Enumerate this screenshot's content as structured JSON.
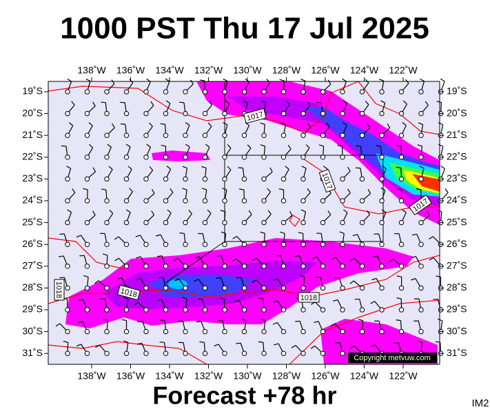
{
  "header": {
    "title": "1000 PST Thu 17 Jul 2025"
  },
  "footer": {
    "forecast": "Forecast +78 hr",
    "image_id": "IM2"
  },
  "map": {
    "longitude_labels": [
      "138˚W",
      "136˚W",
      "134˚W",
      "132˚W",
      "130˚W",
      "128˚W",
      "126˚W",
      "124˚W",
      "122˚W"
    ],
    "latitude_labels": [
      "19˚S",
      "20˚S",
      "21˚S",
      "22˚S",
      "23˚S",
      "24˚S",
      "25˚S",
      "26˚S",
      "27˚S",
      "28˚S",
      "29˚S",
      "30˚S",
      "31˚S"
    ],
    "isobar_labels": [
      "1017",
      "1017",
      "1017",
      "1018",
      "1018",
      "1018"
    ],
    "copyright": "Copyright metvuw.com"
  }
}
